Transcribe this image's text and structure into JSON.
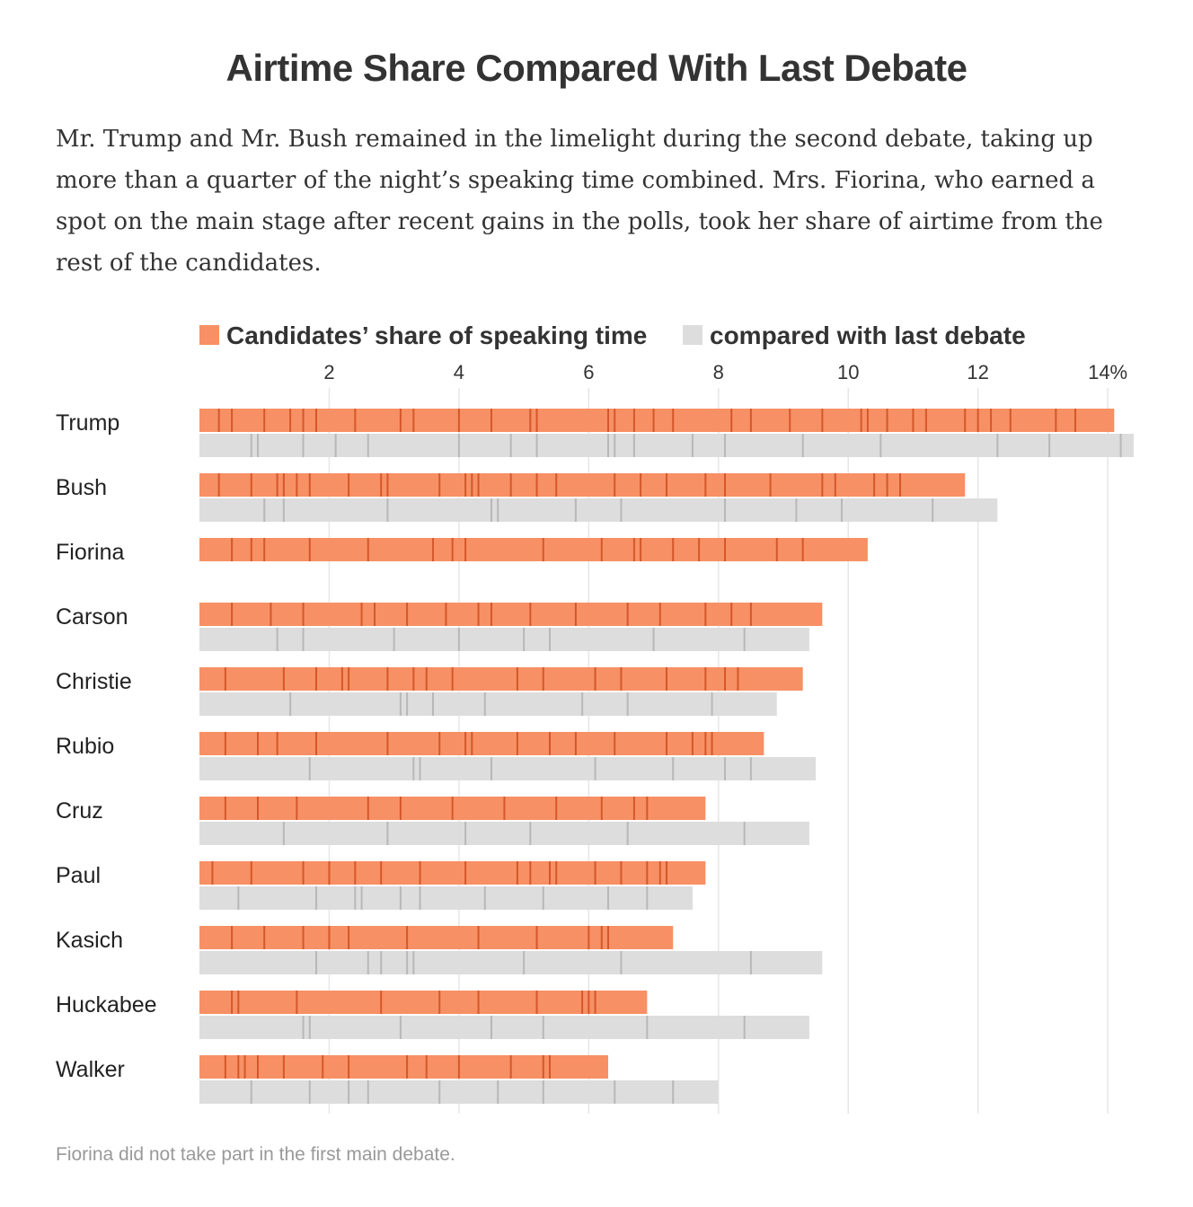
{
  "title": "Airtime Share Compared With Last Debate",
  "subtitle": "Mr. Trump and Mr. Bush remained in the limelight during the second debate, taking up more than a quarter of the night’s speaking time combined. Mrs. Fiorina, who earned a spot on the main stage after recent gains in the polls, took her share of airtime from the rest of the candidates.",
  "footnote": "Fiorina did not take part in the first main debate.",
  "colors": {
    "current": "#f79065",
    "current_divider": "#d4582a",
    "previous": "#dddddd",
    "previous_divider": "#b8b8b8",
    "gridline": "#e6e6e6"
  },
  "chart_data": {
    "type": "bar",
    "legend": {
      "current_label": "Candidates’ share of speaking time",
      "previous_label": "compared with last debate",
      "placement": "top"
    },
    "x_axis": {
      "min": 0,
      "max": 14.4,
      "ticks": [
        2,
        4,
        6,
        8,
        10,
        12,
        14
      ],
      "tick_labels": [
        "2",
        "4",
        "6",
        "8",
        "10",
        "12",
        "14%"
      ],
      "grid": true
    },
    "candidates": [
      {
        "name": "Trump",
        "current": 14.1,
        "previous": 14.4,
        "current_breaks": [
          0.3,
          0.5,
          1.0,
          1.4,
          1.6,
          1.8,
          2.4,
          3.1,
          3.3,
          4.0,
          4.5,
          5.1,
          5.2,
          6.3,
          6.4,
          6.7,
          7.0,
          7.3,
          8.2,
          8.5,
          9.1,
          9.6,
          10.2,
          10.3,
          10.6,
          11.0,
          11.2,
          11.8,
          12.0,
          12.2,
          12.5,
          13.2,
          13.5
        ],
        "previous_breaks": [
          0.8,
          0.9,
          1.6,
          2.1,
          2.6,
          4.0,
          4.8,
          5.2,
          6.3,
          6.4,
          6.7,
          7.6,
          8.1,
          9.3,
          10.5,
          12.3,
          13.1,
          14.2
        ]
      },
      {
        "name": "Bush",
        "current": 11.8,
        "previous": 12.3,
        "current_breaks": [
          0.3,
          0.8,
          1.2,
          1.3,
          1.5,
          1.7,
          2.3,
          2.8,
          2.9,
          3.7,
          4.1,
          4.2,
          4.3,
          4.8,
          5.2,
          5.5,
          6.4,
          6.8,
          7.2,
          7.8,
          8.1,
          8.8,
          9.6,
          9.8,
          10.4,
          10.6,
          10.8
        ],
        "previous_breaks": [
          1.0,
          1.3,
          2.9,
          4.5,
          4.6,
          5.8,
          6.5,
          8.1,
          9.2,
          9.9,
          11.3
        ]
      },
      {
        "name": "Fiorina",
        "current": 10.3,
        "previous": null,
        "current_breaks": [
          0.5,
          0.8,
          1.0,
          1.7,
          2.6,
          3.6,
          3.9,
          4.1,
          5.3,
          6.2,
          6.7,
          6.8,
          7.3,
          7.7,
          8.1,
          8.9,
          9.3
        ],
        "previous_breaks": []
      },
      {
        "name": "Carson",
        "current": 9.6,
        "previous": 9.4,
        "current_breaks": [
          0.5,
          1.1,
          1.6,
          2.5,
          2.7,
          3.2,
          3.8,
          4.3,
          4.5,
          5.1,
          5.8,
          6.6,
          7.1,
          7.8,
          8.2,
          8.5
        ],
        "previous_breaks": [
          1.2,
          1.6,
          3.0,
          4.0,
          5.0,
          5.4,
          7.0,
          8.4
        ]
      },
      {
        "name": "Christie",
        "current": 9.3,
        "previous": 8.9,
        "current_breaks": [
          0.4,
          1.3,
          1.8,
          2.2,
          2.3,
          2.9,
          3.3,
          3.5,
          3.9,
          4.9,
          5.3,
          6.1,
          6.5,
          7.2,
          7.8,
          8.1,
          8.3
        ],
        "previous_breaks": [
          1.4,
          3.1,
          3.2,
          3.6,
          4.4,
          5.9,
          6.6,
          7.9
        ]
      },
      {
        "name": "Rubio",
        "current": 8.7,
        "previous": 9.5,
        "current_breaks": [
          0.4,
          0.9,
          1.2,
          1.8,
          2.9,
          3.7,
          4.1,
          4.2,
          4.9,
          5.4,
          5.8,
          6.4,
          7.2,
          7.6,
          7.8,
          7.9
        ],
        "previous_breaks": [
          1.7,
          3.3,
          3.4,
          4.5,
          6.1,
          7.3,
          8.1,
          8.5
        ]
      },
      {
        "name": "Cruz",
        "current": 7.8,
        "previous": 9.4,
        "current_breaks": [
          0.4,
          0.9,
          1.5,
          2.6,
          3.1,
          3.9,
          4.7,
          5.5,
          6.2,
          6.7,
          6.9
        ],
        "previous_breaks": [
          1.3,
          2.9,
          4.1,
          5.1,
          6.6,
          8.4
        ]
      },
      {
        "name": "Paul",
        "current": 7.8,
        "previous": 7.6,
        "current_breaks": [
          0.2,
          0.8,
          1.6,
          2.0,
          2.4,
          2.8,
          3.4,
          4.1,
          4.9,
          5.1,
          5.4,
          5.5,
          6.1,
          6.5,
          6.9,
          7.1,
          7.2
        ],
        "previous_breaks": [
          0.6,
          1.8,
          2.4,
          2.5,
          3.1,
          3.4,
          4.4,
          5.3,
          6.3,
          6.9
        ]
      },
      {
        "name": "Kasich",
        "current": 7.3,
        "previous": 9.6,
        "current_breaks": [
          0.5,
          1.0,
          1.6,
          2.0,
          2.3,
          3.2,
          4.3,
          5.2,
          6.0,
          6.2,
          6.3
        ],
        "previous_breaks": [
          1.8,
          2.6,
          2.8,
          3.2,
          3.3,
          5.0,
          6.5,
          8.5
        ]
      },
      {
        "name": "Huckabee",
        "current": 6.9,
        "previous": 9.4,
        "current_breaks": [
          0.5,
          0.6,
          1.5,
          2.8,
          3.7,
          4.3,
          5.2,
          5.9,
          6.0,
          6.1
        ],
        "previous_breaks": [
          1.6,
          1.7,
          3.1,
          4.5,
          5.3,
          6.9,
          8.4
        ]
      },
      {
        "name": "Walker",
        "current": 6.3,
        "previous": 8.0,
        "current_breaks": [
          0.4,
          0.6,
          0.7,
          0.9,
          1.3,
          1.9,
          2.3,
          3.2,
          3.5,
          4.0,
          4.8,
          5.3,
          5.4
        ],
        "previous_breaks": [
          0.8,
          1.7,
          2.3,
          2.6,
          3.7,
          4.6,
          5.3,
          6.4,
          7.3
        ]
      }
    ]
  }
}
